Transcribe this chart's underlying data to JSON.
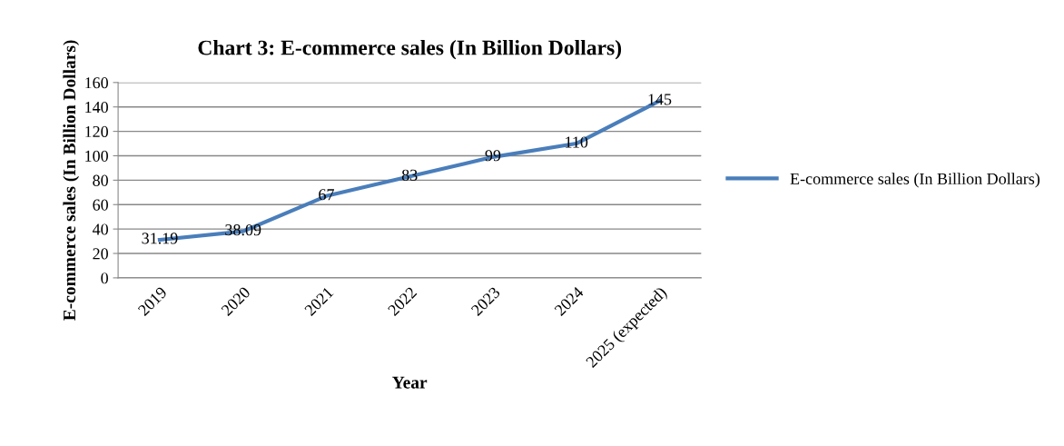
{
  "chart_data": {
    "type": "line",
    "title": "Chart 3: E-commerce sales (In Billion Dollars)",
    "xlabel": "Year",
    "ylabel": "E-commerce sales (In Billion Dollars)",
    "categories": [
      "2019",
      "2020",
      "2021",
      "2022",
      "2023",
      "2024",
      "2025 (expected)"
    ],
    "series": [
      {
        "name": "E-commerce sales (In Billion Dollars)",
        "color": "#4a7ebb",
        "values": [
          31.19,
          38.09,
          67,
          83,
          99,
          110,
          145
        ]
      }
    ],
    "ylim": [
      0,
      160
    ],
    "yticks": [
      0,
      20,
      40,
      60,
      80,
      100,
      120,
      140,
      160
    ],
    "grid": "y",
    "legend": "right",
    "data_labels": true,
    "marker": "none",
    "line_style": "solid"
  }
}
